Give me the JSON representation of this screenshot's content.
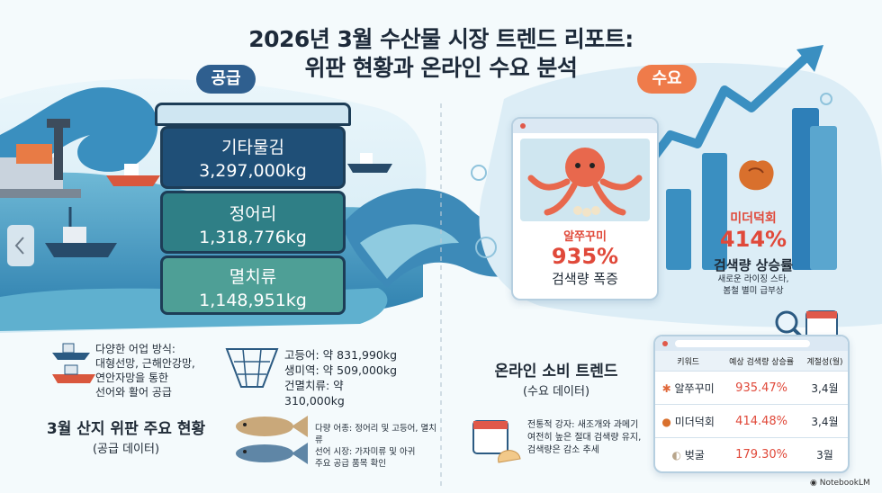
{
  "title": {
    "line1": "2026년 3월 수산물 시장 트렌드 리포트:",
    "line2": "위판 현황과 온라인 수요 분석"
  },
  "supply": {
    "badge": "공급",
    "crates": [
      {
        "name": "기타물김",
        "value": "3,297,000kg"
      },
      {
        "name": "정어리",
        "value": "1,318,776kg"
      },
      {
        "name": "멸치류",
        "value": "1,148,951kg"
      }
    ],
    "methods": [
      "다양한 어업 방식:",
      "대형선망, 근해안강망,",
      "연안자망을 통한",
      "선어와 활어 공급"
    ],
    "catches": [
      "고등어: 약 831,990kg",
      "생미역: 약 509,000kg",
      "건멸치류: 약",
      "310,000kg"
    ],
    "variety_note": [
      "다량 어종: 정어리 및 고등어, 멸치류",
      "선어 시장: 가자미류 및 아귀",
      "주요 공급 품목 확인"
    ],
    "section_title": "3월 산지 위판 주요 현황",
    "section_sub": "(공급 데이터)"
  },
  "demand": {
    "badge": "수요",
    "octopus": {
      "name": "알쭈꾸미",
      "rate": "935%",
      "desc": "검색량 폭증"
    },
    "sea_squirt": {
      "name": "미더덕회",
      "rate": "414%",
      "desc": "검색량 상승률",
      "sub": [
        "새로운 라이징 스타,",
        "봄철 별미 급부상"
      ]
    },
    "section_title": "온라인 소비 트렌드",
    "section_sub": "(수요 데이터)",
    "traditional_note": [
      "전통적 강자: 새조개와 과메기",
      "여전히 높은 절대 검색량 유지,",
      "검색량은 감소 추세"
    ],
    "table": {
      "headers": [
        "키워드",
        "예상 검색량 상승률",
        "계절성(월)"
      ],
      "rows": [
        {
          "keyword": "알쭈꾸미",
          "rate": "935.47%",
          "season": "3,4월"
        },
        {
          "keyword": "미더덕회",
          "rate": "414.48%",
          "season": "3,4월"
        },
        {
          "keyword": "벚굴",
          "rate": "179.30%",
          "season": "3월"
        }
      ]
    }
  },
  "footer": {
    "brand": "NotebookLM"
  },
  "colors": {
    "navy": "#1d3d57",
    "crate_top": "#1f4f77",
    "crate_mid": "#2f7f86",
    "crate_bottom": "#4e9f96",
    "supply_badge": "#2f5f8f",
    "demand_badge": "#ef7b4a",
    "accent_red": "#e0493a"
  }
}
